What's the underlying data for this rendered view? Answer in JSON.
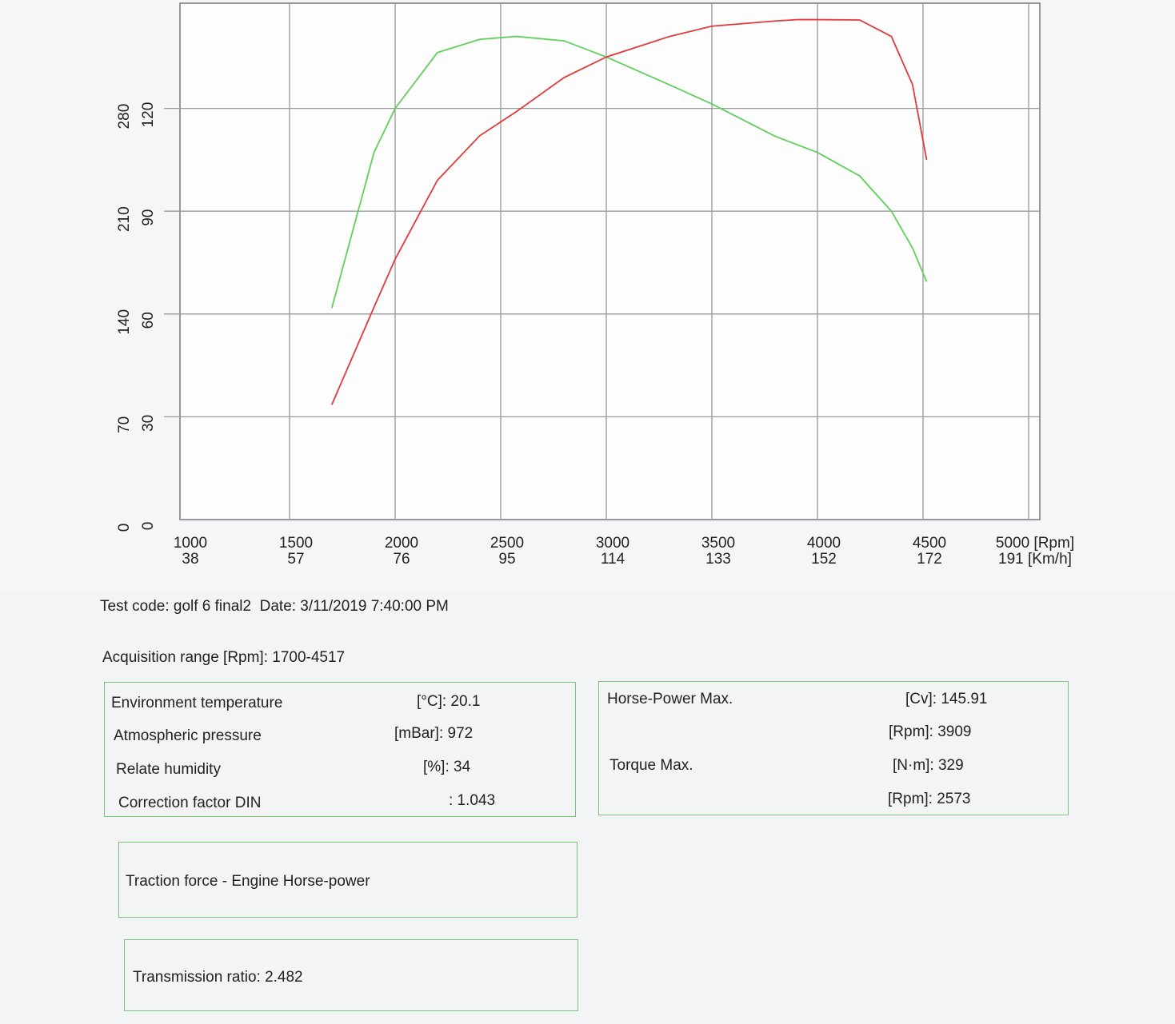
{
  "chart_data": {
    "type": "line",
    "x": [
      1700,
      1900,
      2000,
      2200,
      2400,
      2573,
      2800,
      3000,
      3300,
      3500,
      3800,
      3909,
      4000,
      4200,
      4350,
      4450,
      4517
    ],
    "series": [
      {
        "color": "#5fd05a",
        "values": [
          144,
          250,
          280,
          318,
          327,
          329,
          326,
          315,
          296,
          283,
          261,
          255,
          250,
          234,
          210,
          185,
          162
        ]
      },
      {
        "color": "#e03a3a",
        "axis": "y2",
        "values": [
          33.5,
          62,
          76,
          99,
          112,
          119,
          129,
          135,
          141,
          144,
          145.5,
          145.91,
          145.9,
          145.8,
          141,
          127,
          105
        ]
      }
    ],
    "xlim": [
      1000,
      5000
    ],
    "xticks": [
      1000,
      1500,
      2000,
      2500,
      3000,
      3500,
      4000,
      4500,
      {
        "value": 5000,
        "label": "5000 [Rpm]"
      }
    ],
    "x_speed_labels": [
      38,
      57,
      76,
      95,
      114,
      133,
      152,
      172,
      {
        "value": 191,
        "label": "191 [Km/h]"
      }
    ],
    "ylim": [
      0,
      350
    ],
    "yticks": [
      0,
      70,
      140,
      210,
      280
    ],
    "y2lim": [
      0,
      150
    ],
    "y2ticks": [
      0,
      30,
      60,
      90,
      120
    ],
    "grid": true
  },
  "report": {
    "test_info": "Test code: golf 6 final2  Date: 3/11/2019 7:40:00 PM",
    "acquisition_range": "Acquisition range [Rpm]: 1700-4517",
    "environment": [
      [
        "Environment temperature",
        "[°C]: 20.1"
      ],
      [
        "Atmospheric pressure",
        "[mBar]: 972"
      ],
      [
        "Relate humidity",
        "[%]: 34"
      ],
      [
        "Correction factor DIN",
        ": 1.043"
      ]
    ],
    "maxima": [
      {
        "label": "Horse-Power Max.",
        "values": [
          "[Cv]: 145.91",
          "[Rpm]: 3909"
        ]
      },
      {
        "label": "Torque Max.",
        "values": [
          "[N·m]: 329",
          "[Rpm]: 2573"
        ]
      }
    ],
    "traction": "Traction force - Engine Horse-power",
    "transmission": "Transmission ratio: 2.482"
  }
}
